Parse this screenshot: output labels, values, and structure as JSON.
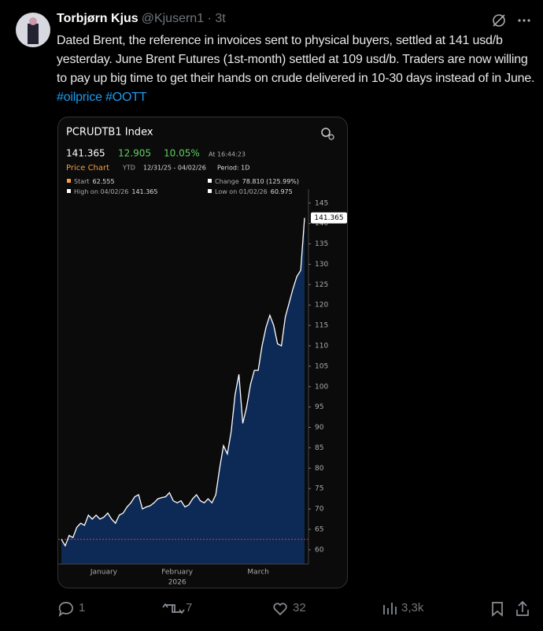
{
  "tweet": {
    "author": "Torbjørn Kjus",
    "meta": "@Kjusern1 · 3t",
    "text": "Dated Brent, the reference in invoices sent to physical buyers, settled at 141 usd/b yesterday. June Brent Futures (1st-month) settled at 109 usd/b. Traders are now willing to pay up big time to get their hands on crude delivered in 10-30 days instead of in June.",
    "hashtags": [
      "#oilprice",
      "#OOTT"
    ]
  },
  "chart_data": {
    "type": "area",
    "title": "PCRUDTB1 Index",
    "header": {
      "change": "12.905",
      "change_pct": "10.05%",
      "time": "At 16:44:23",
      "chart_name": "Price Chart",
      "range": "YTD",
      "dates": "12/31/25 - 04/02/26",
      "period": "Period: 1D"
    },
    "legend": {
      "start": "Start",
      "change_label": "Change",
      "change": "78.810 (125.99%)",
      "high_label": "High on 04/02/26",
      "low_label": "Low on 01/02/26"
    },
    "categories": [
      null,
      null,
      null,
      null,
      null,
      null,
      null,
      null,
      null,
      null,
      null,
      "January",
      null,
      null,
      null,
      null,
      null,
      null,
      null,
      null,
      null,
      null,
      null,
      null,
      null,
      null,
      null,
      null,
      null,
      null,
      "February",
      null,
      null,
      null,
      null,
      null,
      null,
      null,
      null,
      null,
      null,
      null,
      null,
      null,
      null,
      null,
      null,
      null,
      null,
      null,
      null,
      "March",
      null,
      null,
      null,
      null,
      null,
      null,
      null,
      null,
      null,
      null,
      null,
      null
    ],
    "year_label": "2026",
    "values": [
      62.555,
      60.975,
      63.5,
      63,
      65.5,
      66.5,
      66,
      68.5,
      67.5,
      68.5,
      67.5,
      68,
      69,
      67.5,
      66.5,
      68.5,
      69,
      70.5,
      71.5,
      73,
      73.5,
      70,
      70.5,
      70.8,
      71.5,
      72.5,
      72.8,
      73,
      74,
      72,
      71.5,
      72,
      70.5,
      71,
      72.5,
      73.5,
      72,
      71.5,
      72.5,
      71.5,
      73.5,
      80,
      85.5,
      83.5,
      89,
      98,
      103,
      91,
      95,
      100.5,
      104,
      104,
      110,
      114.5,
      117.5,
      115,
      110.5,
      110,
      117,
      120.5,
      124,
      127,
      128.5,
      141.365
    ],
    "ylim": [
      56.5,
      146.5
    ],
    "yticks": [
      60,
      65,
      70,
      75,
      80,
      85,
      90,
      95,
      100,
      105,
      110,
      115,
      120,
      125,
      130,
      135,
      140,
      145
    ],
    "color": "#0d2a56",
    "line_color": "#ffffff",
    "start_line_color": "#d23b3b"
  },
  "actions": {
    "replies": 1,
    "reposts": 7,
    "likes": 32,
    "views": "3,3k"
  }
}
